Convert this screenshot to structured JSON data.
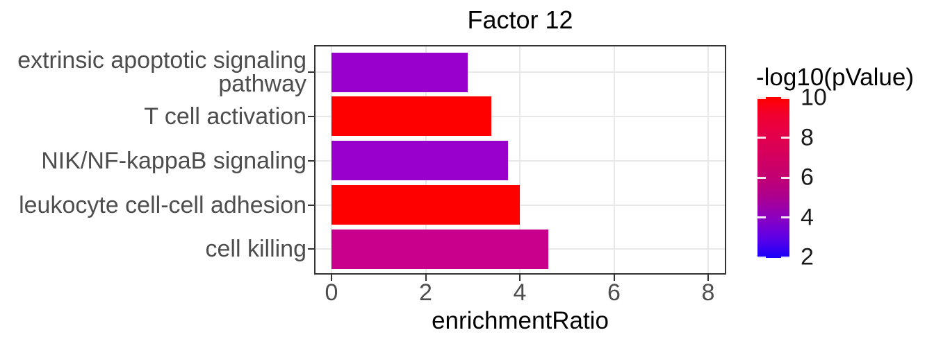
{
  "chart_data": {
    "type": "bar",
    "orientation": "horizontal",
    "title": "Factor 12",
    "xlabel": "enrichmentRatio",
    "ylabel": "",
    "grid": true,
    "xlim": [
      -0.4,
      8.4
    ],
    "x_ticks": [
      0,
      2,
      4,
      6,
      8
    ],
    "categories": [
      "extrinsic apoptotic signaling pathway",
      "T cell activation",
      "NIK/NF-kappaB signaling",
      "leukocyte cell-cell adhesion",
      "cell killing"
    ],
    "series": [
      {
        "name": "enrichmentRatio",
        "values": [
          2.9,
          3.4,
          3.75,
          4.0,
          4.6
        ]
      },
      {
        "name": "-log10(pValue)",
        "values": [
          4.2,
          10,
          4.2,
          10,
          6.3
        ]
      }
    ],
    "bar_colors": [
      "#9900CC",
      "#FE0000",
      "#9900CC",
      "#FE0000",
      "#C8008C"
    ],
    "legend": {
      "title": "-log10(pValue)",
      "position": "right",
      "type": "colorbar",
      "range": [
        2,
        10
      ],
      "ticks": [
        10,
        8,
        6,
        4,
        2
      ],
      "low_color": "#0000FF",
      "high_color": "#FF0000",
      "gradient_stops": [
        {
          "value": 10,
          "color": "#FF0000"
        },
        {
          "value": 9,
          "color": "#F00033"
        },
        {
          "value": 8,
          "color": "#E2004C"
        },
        {
          "value": 7,
          "color": "#D30060"
        },
        {
          "value": 6,
          "color": "#C10072"
        },
        {
          "value": 5,
          "color": "#AB0090"
        },
        {
          "value": 4,
          "color": "#8B00C0"
        },
        {
          "value": 3,
          "color": "#5E00E6"
        },
        {
          "value": 2,
          "color": "#1A00FA"
        }
      ]
    }
  },
  "styles": {
    "panel_border": "#333333",
    "gridline": "#E8E8E8",
    "tick_mark": "#333333",
    "axis_text": "#4D4D4D",
    "title_text": "#000000"
  }
}
